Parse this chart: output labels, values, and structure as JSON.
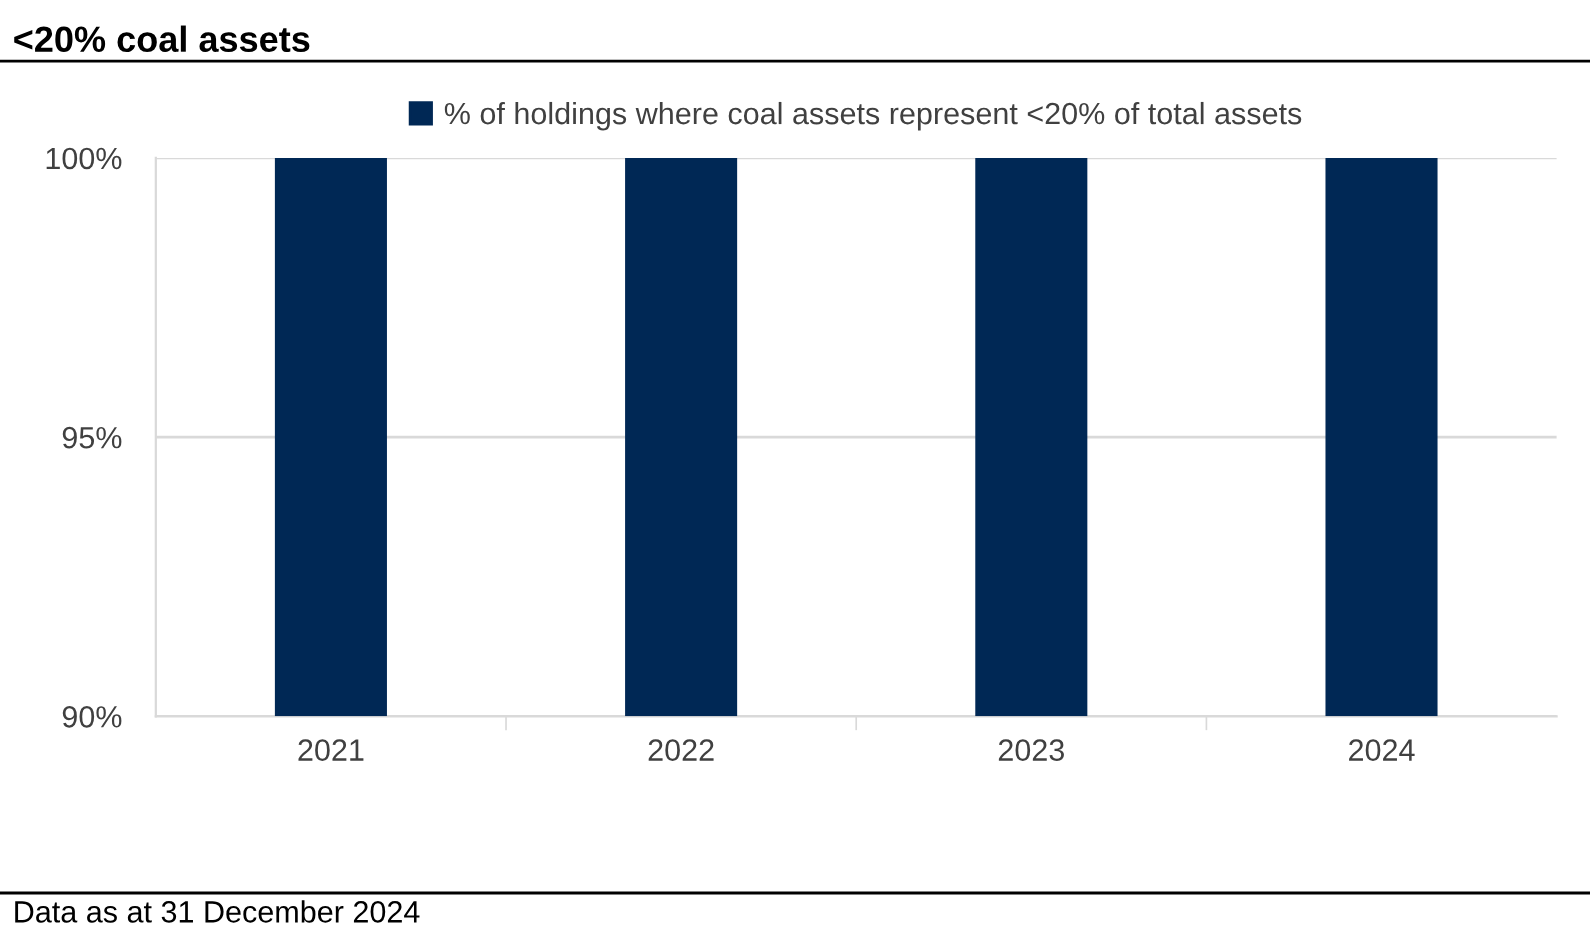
{
  "chart_data": {
    "type": "bar",
    "title": "<20% coal assets",
    "categories": [
      "2021",
      "2022",
      "2023",
      "2024"
    ],
    "series": [
      {
        "name": "% of holdings where coal assets represent <20% of total assets",
        "color": "#002855",
        "values": [
          100,
          100,
          100,
          100
        ]
      }
    ],
    "ylim": [
      90,
      100
    ],
    "yticks": [
      {
        "value": 90,
        "label": "90%"
      },
      {
        "value": 95,
        "label": "95%"
      },
      {
        "value": 100,
        "label": "100%"
      }
    ],
    "grid": "y",
    "legend": "top",
    "annotations": [
      "Data as at 31 December 2024"
    ]
  }
}
